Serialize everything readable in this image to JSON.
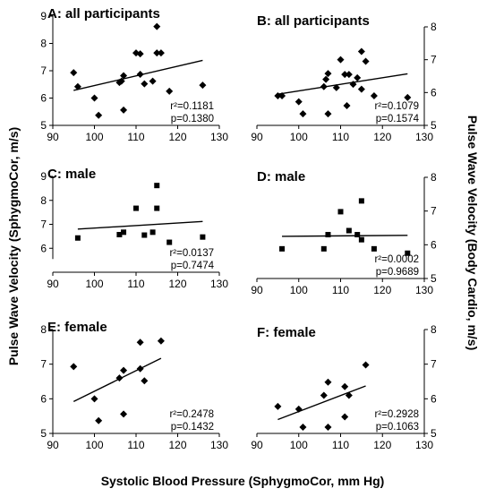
{
  "figure": {
    "x_axis_title": "Systolic Blood Pressure (SphygmoCor, mm Hg)",
    "y_axis_title_left": "Pulse Wave Velocity (SphygmoCor, m/s)",
    "y_axis_title_right": "Pulse Wave Velocity (Body Cardio, m/s)"
  },
  "chart_data": [
    {
      "type": "scatter",
      "panel": "A",
      "title": "A: all participants",
      "xlim": [
        90,
        130
      ],
      "ylim": [
        5,
        9
      ],
      "xticks": [
        90,
        100,
        110,
        120,
        130
      ],
      "yticks": [
        5,
        6,
        7,
        8,
        9
      ],
      "y_axis_side": "left",
      "stats": {
        "r2": "0.1181",
        "p": "0.1380"
      },
      "fit_line": {
        "x": [
          95,
          126
        ],
        "y": [
          6.28,
          7.38
        ]
      },
      "points": [
        {
          "x": 95,
          "y": 6.93
        },
        {
          "x": 96,
          "y": 6.42
        },
        {
          "x": 100,
          "y": 6.0
        },
        {
          "x": 101,
          "y": 5.37
        },
        {
          "x": 106,
          "y": 6.57
        },
        {
          "x": 106.5,
          "y": 6.62
        },
        {
          "x": 107,
          "y": 6.82
        },
        {
          "x": 107,
          "y": 5.56
        },
        {
          "x": 110,
          "y": 7.65
        },
        {
          "x": 111,
          "y": 7.62
        },
        {
          "x": 111,
          "y": 6.87
        },
        {
          "x": 112,
          "y": 6.52
        },
        {
          "x": 114,
          "y": 6.62
        },
        {
          "x": 115,
          "y": 8.62
        },
        {
          "x": 115,
          "y": 7.65
        },
        {
          "x": 116,
          "y": 7.65
        },
        {
          "x": 118,
          "y": 6.25
        },
        {
          "x": 126,
          "y": 6.47
        }
      ]
    },
    {
      "type": "scatter",
      "panel": "B",
      "title": "B: all participants",
      "xlim": [
        90,
        130
      ],
      "ylim": [
        5,
        8
      ],
      "xticks": [
        90,
        100,
        110,
        120,
        130
      ],
      "yticks": [
        5,
        6,
        7,
        8
      ],
      "y_axis_side": "right",
      "stats": {
        "r2": "0.1079",
        "p": "0.1574"
      },
      "fit_line": {
        "x": [
          95,
          126
        ],
        "y": [
          5.95,
          6.57
        ]
      },
      "points": [
        {
          "x": 95,
          "y": 5.9
        },
        {
          "x": 96,
          "y": 5.9
        },
        {
          "x": 100,
          "y": 5.72
        },
        {
          "x": 101,
          "y": 5.35
        },
        {
          "x": 106,
          "y": 6.18
        },
        {
          "x": 106.5,
          "y": 6.4
        },
        {
          "x": 107,
          "y": 6.58
        },
        {
          "x": 107,
          "y": 5.35
        },
        {
          "x": 109,
          "y": 6.15
        },
        {
          "x": 110,
          "y": 7.0
        },
        {
          "x": 111,
          "y": 6.55
        },
        {
          "x": 111.5,
          "y": 5.6
        },
        {
          "x": 112,
          "y": 6.55
        },
        {
          "x": 113,
          "y": 6.25
        },
        {
          "x": 114,
          "y": 6.45
        },
        {
          "x": 115,
          "y": 7.25
        },
        {
          "x": 115,
          "y": 6.1
        },
        {
          "x": 116,
          "y": 6.95
        },
        {
          "x": 118,
          "y": 5.9
        },
        {
          "x": 126,
          "y": 5.85
        }
      ]
    },
    {
      "type": "scatter",
      "panel": "C",
      "title": "C: male",
      "xlim": [
        90,
        130
      ],
      "ylim": [
        5,
        9
      ],
      "xticks": [
        90,
        100,
        110,
        120,
        130
      ],
      "yticks": [
        6,
        7,
        8,
        9
      ],
      "y_axis_side": "left",
      "stats": {
        "r2": "0.0137",
        "p": "0.7474"
      },
      "fit_line": {
        "x": [
          96,
          126
        ],
        "y": [
          6.8,
          7.12
        ]
      },
      "points": [
        {
          "x": 96,
          "y": 6.43
        },
        {
          "x": 106,
          "y": 6.57
        },
        {
          "x": 107,
          "y": 6.67
        },
        {
          "x": 110,
          "y": 7.67
        },
        {
          "x": 112,
          "y": 6.55
        },
        {
          "x": 114,
          "y": 6.67
        },
        {
          "x": 115,
          "y": 8.62
        },
        {
          "x": 115,
          "y": 7.67
        },
        {
          "x": 118,
          "y": 6.25
        },
        {
          "x": 126,
          "y": 6.47
        }
      ]
    },
    {
      "type": "scatter",
      "panel": "D",
      "title": "D: male",
      "xlim": [
        90,
        130
      ],
      "ylim": [
        5,
        8
      ],
      "xticks": [
        90,
        100,
        110,
        120,
        130
      ],
      "yticks": [
        5,
        6,
        7,
        8
      ],
      "y_axis_side": "right",
      "stats": {
        "r2": "0.0002",
        "p": "0.9689"
      },
      "fit_line": {
        "x": [
          96,
          126
        ],
        "y": [
          6.25,
          6.28
        ]
      },
      "points": [
        {
          "x": 96,
          "y": 5.88
        },
        {
          "x": 106,
          "y": 5.88
        },
        {
          "x": 107,
          "y": 6.3
        },
        {
          "x": 110,
          "y": 6.98
        },
        {
          "x": 112,
          "y": 6.42
        },
        {
          "x": 114,
          "y": 6.3
        },
        {
          "x": 115,
          "y": 7.3
        },
        {
          "x": 115,
          "y": 6.15
        },
        {
          "x": 118,
          "y": 5.88
        },
        {
          "x": 126,
          "y": 5.75
        }
      ]
    },
    {
      "type": "scatter",
      "panel": "E",
      "title": "E: female",
      "xlim": [
        90,
        130
      ],
      "ylim": [
        5,
        8
      ],
      "xticks": [
        90,
        100,
        110,
        120,
        130
      ],
      "yticks": [
        5,
        6,
        7,
        8
      ],
      "y_axis_side": "left",
      "stats": {
        "r2": "0.2478",
        "p": "0.1432"
      },
      "fit_line": {
        "x": [
          95,
          116
        ],
        "y": [
          5.92,
          7.17
        ]
      },
      "points": [
        {
          "x": 95,
          "y": 6.93
        },
        {
          "x": 100,
          "y": 6.0
        },
        {
          "x": 101,
          "y": 5.37
        },
        {
          "x": 106,
          "y": 6.6
        },
        {
          "x": 107,
          "y": 6.82
        },
        {
          "x": 107,
          "y": 5.56
        },
        {
          "x": 111,
          "y": 7.63
        },
        {
          "x": 111,
          "y": 6.87
        },
        {
          "x": 112,
          "y": 6.52
        },
        {
          "x": 116,
          "y": 7.67
        }
      ]
    },
    {
      "type": "scatter",
      "panel": "F",
      "title": "F: female",
      "xlim": [
        90,
        130
      ],
      "ylim": [
        5,
        8
      ],
      "xticks": [
        90,
        100,
        110,
        120,
        130
      ],
      "yticks": [
        5,
        6,
        7,
        8
      ],
      "y_axis_side": "right",
      "stats": {
        "r2": "0.2928",
        "p": "0.1063"
      },
      "fit_line": {
        "x": [
          95,
          116
        ],
        "y": [
          5.4,
          6.37
        ]
      },
      "points": [
        {
          "x": 95,
          "y": 5.78
        },
        {
          "x": 100,
          "y": 5.7
        },
        {
          "x": 101,
          "y": 5.18
        },
        {
          "x": 106,
          "y": 6.1
        },
        {
          "x": 107,
          "y": 6.48
        },
        {
          "x": 107,
          "y": 5.18
        },
        {
          "x": 111,
          "y": 5.48
        },
        {
          "x": 111,
          "y": 6.35
        },
        {
          "x": 112,
          "y": 6.1
        },
        {
          "x": 116,
          "y": 6.98
        }
      ]
    }
  ]
}
